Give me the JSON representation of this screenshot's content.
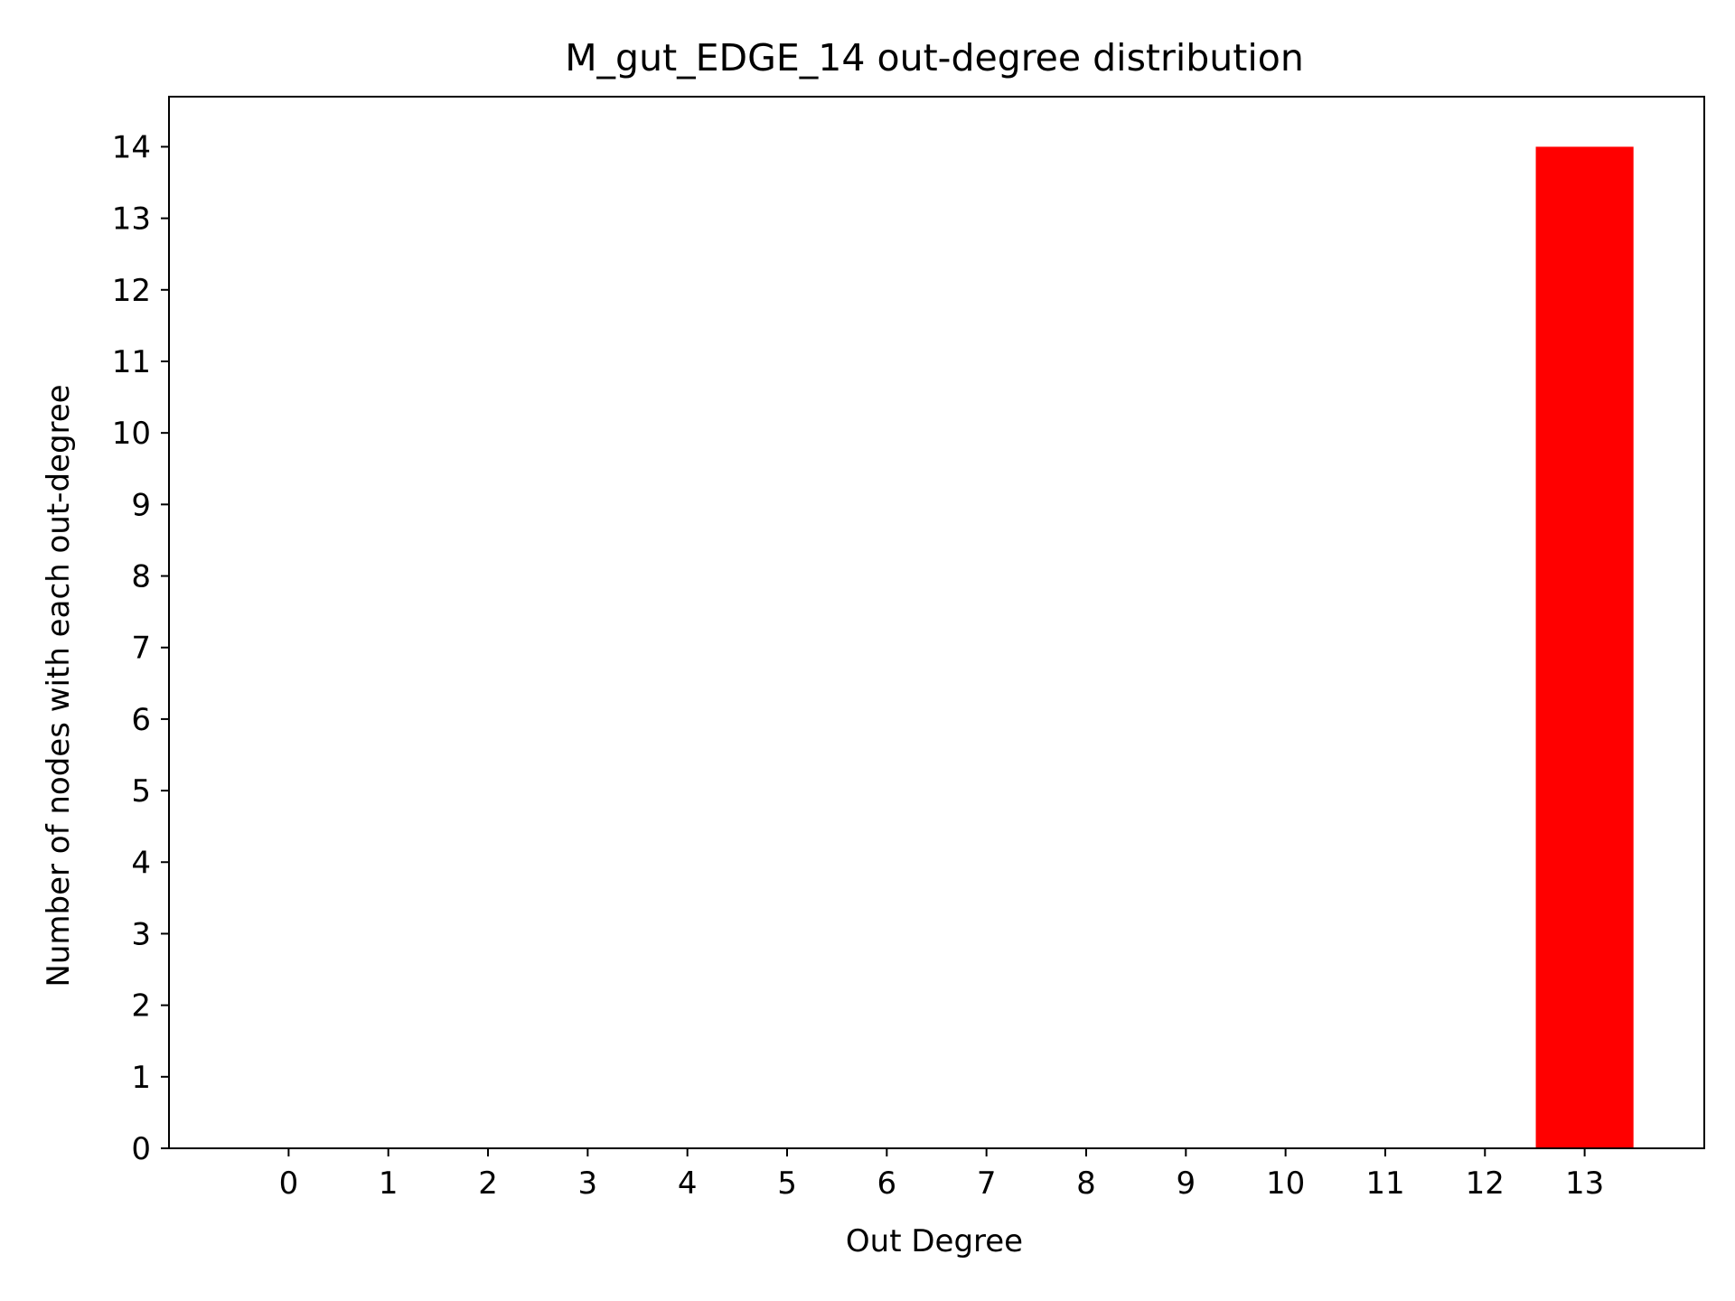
{
  "chart_data": {
    "type": "bar",
    "title": "M_gut_EDGE_14 out-degree distribution",
    "xlabel": "Out Degree",
    "ylabel": "Number of nodes with each out-degree",
    "categories": [
      "0",
      "1",
      "2",
      "3",
      "4",
      "5",
      "6",
      "7",
      "8",
      "9",
      "10",
      "11",
      "12",
      "13"
    ],
    "values": [
      0,
      0,
      0,
      0,
      0,
      0,
      0,
      0,
      0,
      0,
      0,
      0,
      0,
      14
    ],
    "xlim": [
      -1.2,
      14.2
    ],
    "ylim": [
      0,
      14.7
    ],
    "yticks": [
      "0",
      "1",
      "2",
      "3",
      "4",
      "5",
      "6",
      "7",
      "8",
      "9",
      "10",
      "11",
      "12",
      "13",
      "14"
    ],
    "bar_color": "#ff0000",
    "grid": false,
    "legend": "none"
  }
}
